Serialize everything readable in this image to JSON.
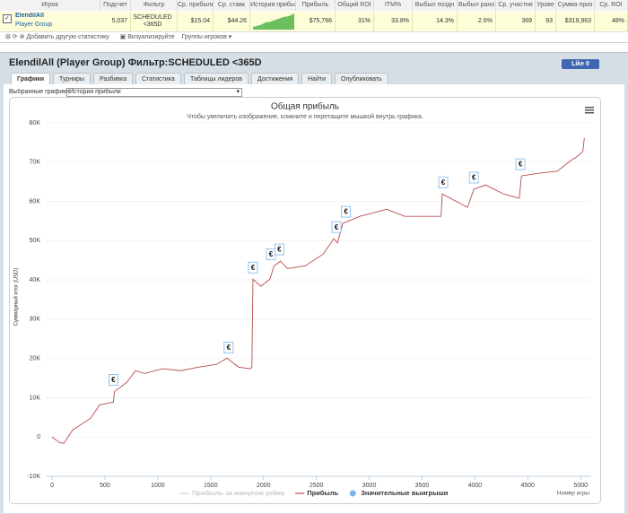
{
  "table": {
    "headers": [
      "Игрок",
      "Подсчет",
      "Фильтр",
      "Ср. прибыль",
      "Ср. ставк",
      "История прибы",
      "Прибыль",
      "Общий ROI",
      "ITM%",
      "Выбыл поздн",
      "Выбыл рано",
      "Ср. участни",
      "Урове",
      "Сумма приз",
      "Ср. ROI"
    ],
    "row": {
      "player": "ElendilAll",
      "group": "Player Group",
      "cells": [
        "5,037",
        "SCHEDULED <365D",
        "$15.04",
        "$44.26",
        "$75,766",
        "31%",
        "33.8%",
        "14.3%",
        "2.6%",
        "369",
        "93",
        "$319,963",
        "48%"
      ]
    }
  },
  "toolbar": {
    "add_stat": "Добавить другую статистику",
    "visualize": "Визуализируйте",
    "groups": "Группы игроков ▾"
  },
  "panel": {
    "title": "ElendilAll (Player Group) Фильтр:SCHEDULED <365D",
    "like": "Like 0",
    "tabs": [
      "Графики",
      "Турниры",
      "Разбивка",
      "Статистика",
      "Таблицы лидеров",
      "Достижения",
      "Найти",
      "Опубликовать"
    ],
    "select_label": "Выбранные графики:",
    "select_value": "История прибыли"
  },
  "chart_data": {
    "type": "line",
    "title": "Общая прибыль",
    "subtitle": "Чтобы увеличить изображение, кликните и перетащите мышкой внутрь графика.",
    "x_label": "Номер игры",
    "y_label": "Суммарный итог (USD)",
    "xlim": [
      -60,
      5100
    ],
    "xticks": [
      0,
      500,
      1000,
      1500,
      2000,
      2500,
      3000,
      3500,
      4000,
      4500,
      5000
    ],
    "ylim": [
      -10000,
      80000
    ],
    "yticks": [
      {
        "value": -10000,
        "label": "-10K"
      },
      0,
      {
        "value": 10000,
        "label": "10K"
      },
      {
        "value": 20000,
        "label": "20K"
      },
      {
        "value": 30000,
        "label": "30K"
      },
      {
        "value": 40000,
        "label": "40K"
      },
      {
        "value": 50000,
        "label": "50K"
      },
      {
        "value": 60000,
        "label": "60K"
      },
      {
        "value": 70000,
        "label": "70K"
      },
      {
        "value": 80000,
        "label": "80K"
      }
    ],
    "marker_label": "€",
    "series": [
      {
        "name": "Прибыль за минусом рейка",
        "color": "#cccccc",
        "visible": false
      },
      {
        "name": "Прибыль",
        "color": "#b84a4a",
        "x": [
          0,
          70,
          110,
          195,
          365,
          450,
          580,
          590,
          705,
          790,
          875,
          1045,
          1215,
          1385,
          1555,
          1655,
          1705,
          1765,
          1875,
          1890,
          1900,
          1975,
          2060,
          2100,
          2160,
          2225,
          2395,
          2565,
          2665,
          2700,
          2750,
          2910,
          3165,
          3335,
          3505,
          3680,
          3690,
          3845,
          3930,
          3990,
          4100,
          4270,
          4420,
          4440,
          4610,
          4780,
          4905,
          4950,
          5020,
          5035
        ],
        "values": [
          0,
          -1400,
          -1600,
          1800,
          4800,
          8200,
          8900,
          11600,
          13900,
          16900,
          16200,
          17400,
          16900,
          17800,
          18500,
          20100,
          19000,
          17800,
          17400,
          17800,
          40200,
          38400,
          40200,
          43600,
          44800,
          42900,
          43600,
          46600,
          50500,
          49400,
          54400,
          56200,
          58000,
          56200,
          56200,
          56200,
          61900,
          59700,
          58500,
          63100,
          64200,
          61900,
          60800,
          66500,
          67200,
          67700,
          70400,
          71100,
          72700,
          76100
        ]
      },
      {
        "name": "Значительные выигрыши",
        "type": "scatter",
        "color": "#7cb5ec",
        "x": [
          580,
          1670,
          1900,
          2070,
          2150,
          2690,
          2780,
          3700,
          3990,
          4430
        ],
        "values": [
          11600,
          19800,
          40200,
          43600,
          44800,
          50500,
          54400,
          61900,
          63100,
          66500
        ]
      }
    ]
  }
}
